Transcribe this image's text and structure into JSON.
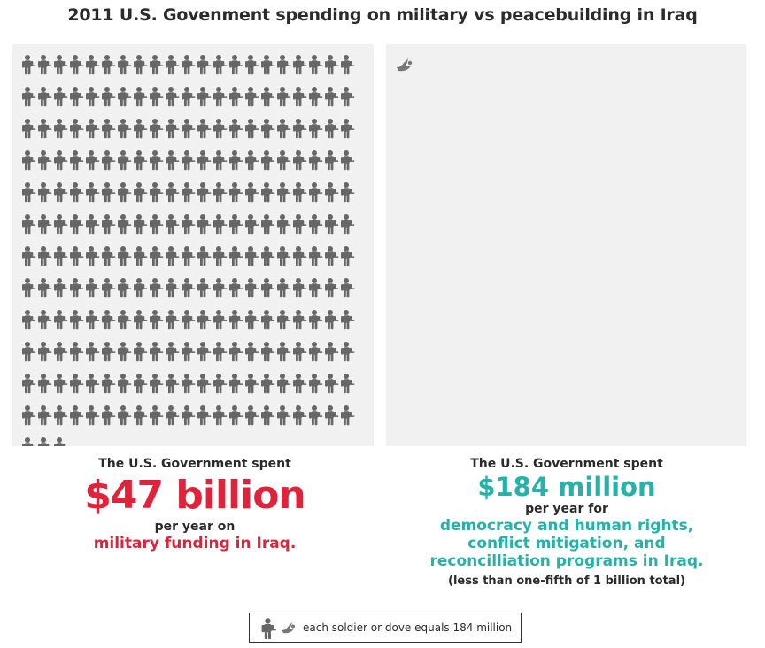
{
  "title": "2011 U.S. Govenment spending on military vs peacebuilding in Iraq",
  "chart_data": {
    "type": "pictograph",
    "unit_value_millions": 184,
    "series": [
      {
        "name": "military",
        "icon": "soldier-icon",
        "icon_count": 255,
        "color": "#666666"
      },
      {
        "name": "peacebuilding",
        "icon": "dove-icon",
        "icon_count": 1,
        "color": "#777777"
      }
    ]
  },
  "left": {
    "lead": "The U.S. Government spent",
    "amount": "$47 billion",
    "per": "per year on",
    "focus": "military funding in Iraq.",
    "amount_color": "#e0233a"
  },
  "right": {
    "lead": "The U.S. Government spent",
    "amount": "$184 million",
    "per": "per year for",
    "focus_lines": [
      "democracy and human rights,",
      "conflict mitigation,  and",
      "reconcilliation programs in Iraq."
    ],
    "note": "(less than one-fifth of 1 billion total)",
    "amount_color": "#24b2a9"
  },
  "legend": {
    "text": "each soldier or dove equals 184 million",
    "icons": [
      "soldier-icon",
      "dove-icon"
    ]
  }
}
